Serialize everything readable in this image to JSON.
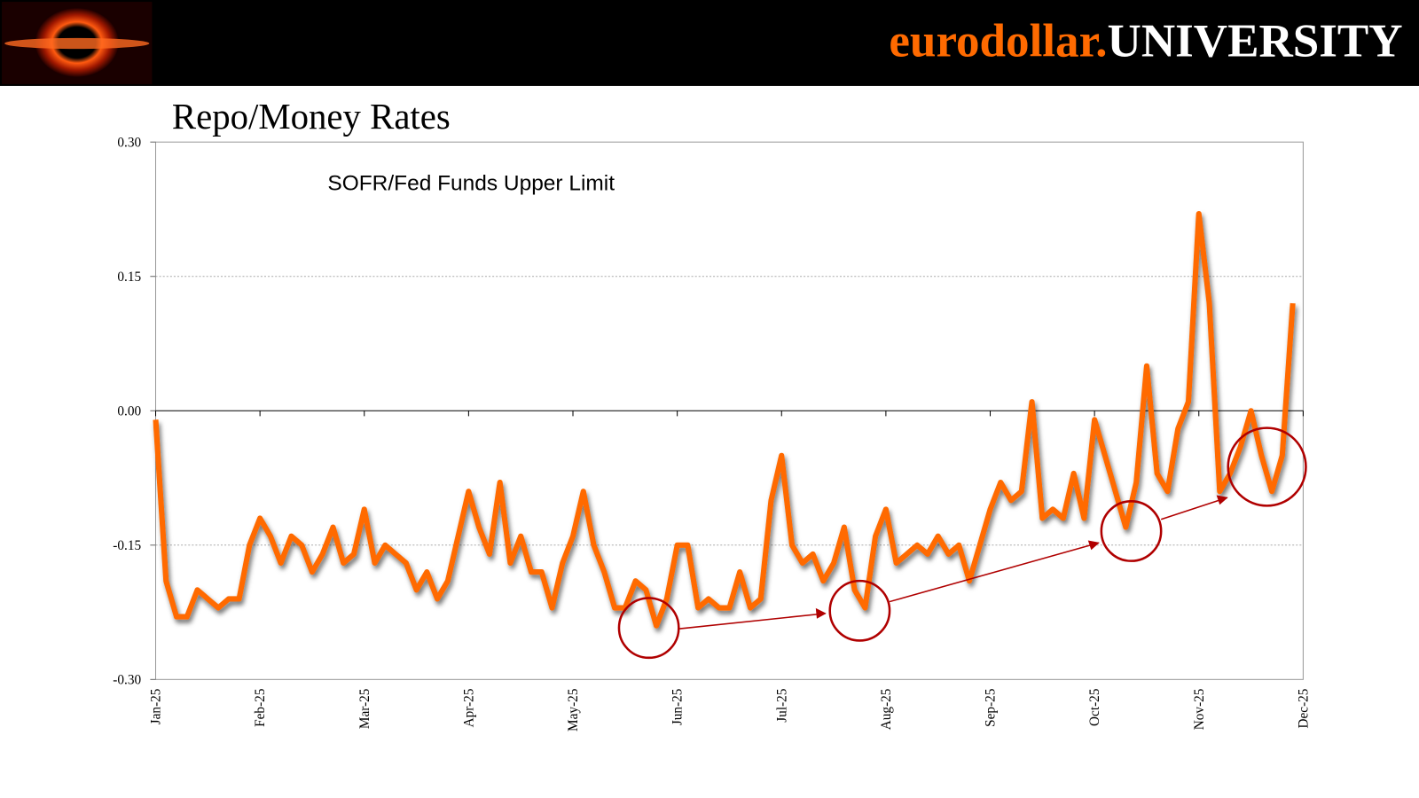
{
  "header": {
    "brand": "eurodollar.",
    "school": "UNIVERSITY"
  },
  "chart_data": {
    "type": "line",
    "title": "Repo/Money Rates",
    "categories": [
      "Jan-25",
      null,
      null,
      null,
      null,
      null,
      null,
      null,
      null,
      null,
      "Feb-25",
      null,
      null,
      null,
      null,
      null,
      null,
      null,
      null,
      null,
      "Mar-25",
      null,
      null,
      null,
      null,
      null,
      null,
      null,
      null,
      null,
      "Apr-25",
      null,
      null,
      null,
      null,
      null,
      null,
      null,
      null,
      null,
      "May-25",
      null,
      null,
      null,
      null,
      null,
      null,
      null,
      null,
      null,
      "Jun-25",
      null,
      null,
      null,
      null,
      null,
      null,
      null,
      null,
      null,
      "Jul-25",
      null,
      null,
      null,
      null,
      null,
      null,
      null,
      null,
      null,
      "Aug-25",
      null,
      null,
      null,
      null,
      null,
      null,
      null,
      null,
      null,
      "Sep-25",
      null,
      null,
      null,
      null,
      null,
      null,
      null,
      null,
      null,
      "Oct-25",
      null,
      null,
      null,
      null,
      null,
      null,
      null,
      null,
      null,
      "Nov-25",
      null,
      null,
      null,
      null,
      null,
      null,
      null,
      null,
      null,
      "Dec-25"
    ],
    "series": [
      {
        "name": "SOFR/Fed Funds Upper Limit",
        "color": "#ff6a00",
        "values": [
          -0.01,
          -0.19,
          -0.23,
          -0.23,
          -0.2,
          -0.21,
          -0.22,
          -0.21,
          -0.21,
          -0.15,
          -0.12,
          -0.14,
          -0.17,
          -0.14,
          -0.15,
          -0.18,
          -0.16,
          -0.13,
          -0.17,
          -0.16,
          -0.11,
          -0.17,
          -0.15,
          -0.16,
          -0.17,
          -0.2,
          -0.18,
          -0.21,
          -0.19,
          -0.14,
          -0.09,
          -0.13,
          -0.16,
          -0.08,
          -0.17,
          -0.14,
          -0.18,
          -0.18,
          -0.22,
          -0.17,
          -0.14,
          -0.09,
          -0.15,
          -0.18,
          -0.22,
          -0.22,
          -0.19,
          -0.2,
          -0.24,
          -0.21,
          -0.15,
          -0.15,
          -0.22,
          -0.21,
          -0.22,
          -0.22,
          -0.18,
          -0.22,
          -0.21,
          -0.1,
          -0.05,
          -0.15,
          -0.17,
          -0.16,
          -0.19,
          -0.17,
          -0.13,
          -0.2,
          -0.22,
          -0.14,
          -0.11,
          -0.17,
          -0.16,
          -0.15,
          -0.16,
          -0.14,
          -0.16,
          -0.15,
          -0.19,
          -0.15,
          -0.11,
          -0.08,
          -0.1,
          -0.09,
          0.01,
          -0.12,
          -0.11,
          -0.12,
          -0.07,
          -0.12,
          -0.01,
          -0.05,
          -0.09,
          -0.13,
          -0.08,
          0.05,
          -0.07,
          -0.09,
          -0.02,
          0.01,
          0.22,
          0.12,
          -0.09,
          -0.07,
          -0.04,
          0.0,
          -0.05,
          -0.09,
          -0.05,
          0.12,
          null
        ]
      }
    ],
    "ylim": [
      -0.3,
      0.3
    ],
    "yticks": [
      {
        "value": -0.3,
        "label": "-0.30"
      },
      -0.15,
      {
        "value": 0,
        "label": "0.00"
      },
      0.15,
      {
        "value": 0.3,
        "label": "0.30"
      }
    ],
    "grid": true,
    "legend": "upper left"
  }
}
